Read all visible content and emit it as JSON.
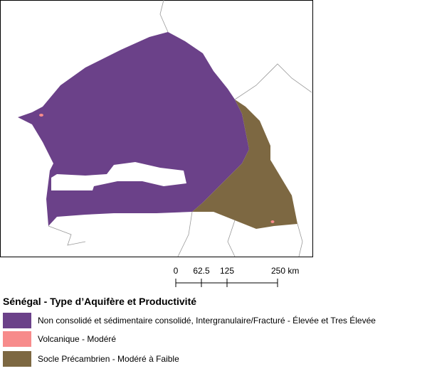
{
  "scale_bar": {
    "labels": [
      "0",
      "62.5",
      "125",
      "250 km"
    ]
  },
  "legend": {
    "title": "Sénégal - Type d’Aquifère et Productivité",
    "items": [
      {
        "label": "Non consolidé et sédimentaire consolidé, Intergranulaire/Fracturé - Élevée et Tres Élevée",
        "color": "#6b4189"
      },
      {
        "label": "Volcanique - Modéré",
        "color": "#f78b8b"
      },
      {
        "label": "Socle Précambrien - Modéré à Faible",
        "color": "#7d6842"
      }
    ]
  }
}
